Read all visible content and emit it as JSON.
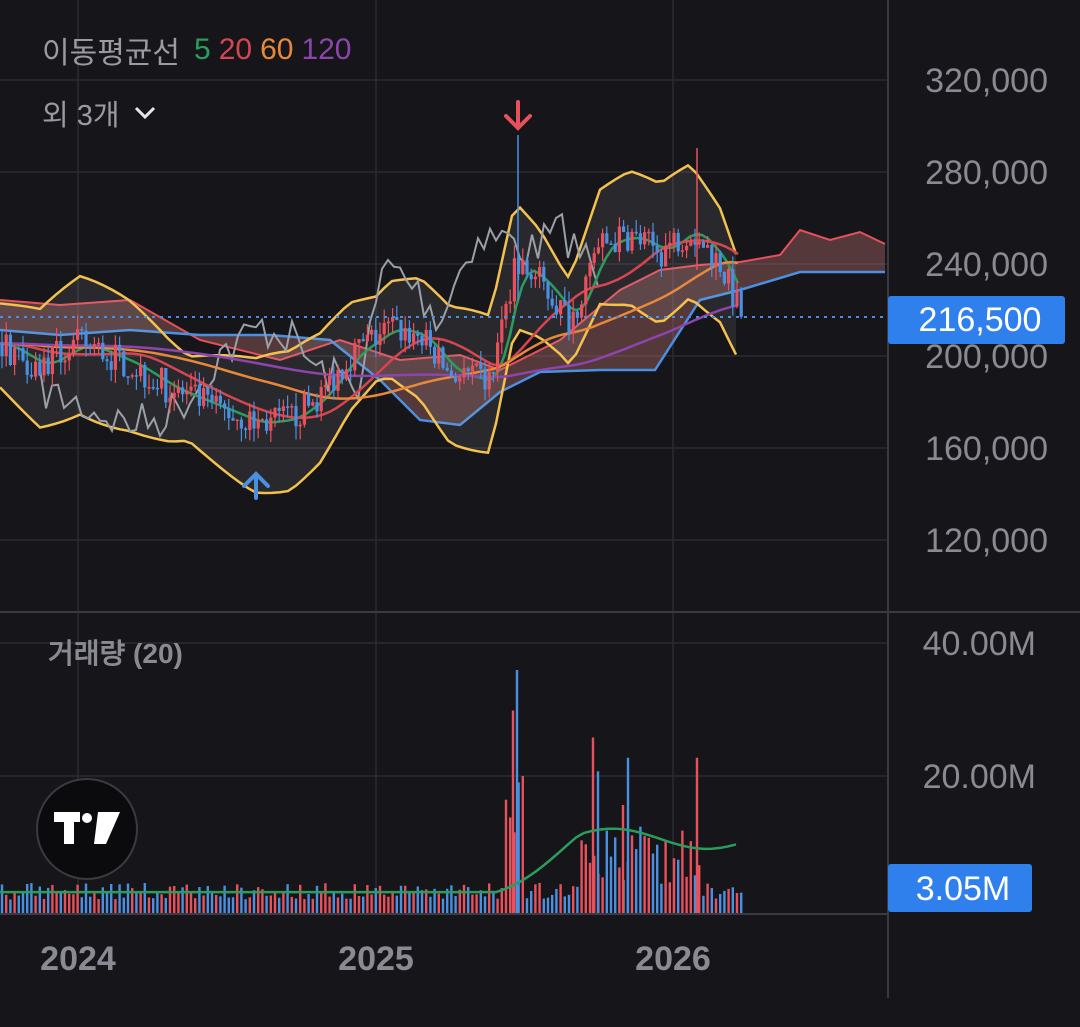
{
  "legend": {
    "label": "이동평균선",
    "periods": [
      {
        "text": "5",
        "color": "#2a9d5c"
      },
      {
        "text": "20",
        "color": "#d64550"
      },
      {
        "text": "60",
        "color": "#e8883a"
      },
      {
        "text": "120",
        "color": "#8e44ad"
      }
    ],
    "more_label": "외 3개"
  },
  "volume_title": "거래량 (20)",
  "price_axis": [
    "320,000",
    "280,000",
    "240,000",
    "200,000",
    "160,000",
    "120,000"
  ],
  "volume_axis": [
    "40.00M",
    "20.00M"
  ],
  "time_axis": [
    "2024",
    "2025",
    "2026"
  ],
  "last_price_label": "216,500",
  "last_volume_label": "3.05M",
  "colors": {
    "background": "#16161a",
    "up": "#e8505b",
    "down": "#4a90e2",
    "price_tag": "#2f80ed",
    "grid": "#2a2a30"
  },
  "chart_data": {
    "type": "line",
    "title": "",
    "y_axis_ticks": [
      120000,
      160000,
      200000,
      240000,
      280000,
      320000
    ],
    "ylim": [
      100000,
      335000
    ],
    "volume_ylim": [
      0,
      45000000
    ],
    "x_ticks": [
      "2024",
      "2025",
      "2026"
    ],
    "last_price": 216500,
    "last_volume": 3050000,
    "signals": [
      {
        "type": "buy",
        "direction": "up"
      },
      {
        "type": "sell",
        "direction": "down"
      }
    ],
    "series": [
      {
        "name": "5",
        "color": "#2a9d5c"
      },
      {
        "name": "20",
        "color": "#d64550"
      },
      {
        "name": "60",
        "color": "#e8883a"
      },
      {
        "name": "120",
        "color": "#8e44ad"
      }
    ]
  }
}
